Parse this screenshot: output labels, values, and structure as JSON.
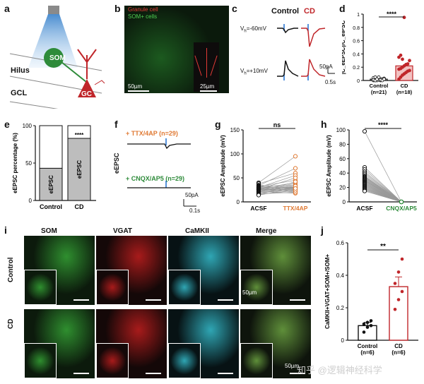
{
  "panels": {
    "a": {
      "letter": "a",
      "som_label": "SOM",
      "gc_label": "GC",
      "hilus_label": "Hilus",
      "gcl_label": "GCL"
    },
    "b": {
      "letter": "b",
      "legend_granule": "Granule cell",
      "legend_som": "SOM+ cells",
      "scale_main": "50µm",
      "scale_inset": "25µm"
    },
    "c": {
      "letter": "c",
      "header_control": "Control",
      "header_cd": "CD",
      "vh_neg": "V",
      "vh_neg_sub": "h",
      "vh_neg_val": "=-60mV",
      "vh_pos": "V",
      "vh_pos_sub": "h",
      "vh_pos_val": "=+10mV",
      "scale_amp": "50pA",
      "scale_time": "0.5s"
    },
    "d": {
      "letter": "d",
      "ylabel": "|C",
      "sig": "****"
    },
    "e": {
      "letter": "e",
      "sig": "****"
    },
    "f": {
      "letter": "f",
      "ylabel": "eEPSC",
      "cond1": "+ TTX/4AP (n=29)",
      "cond2": "+ CNQX/AP5 (n=29)",
      "scale_amp": "50pA",
      "scale_time": "0.1s"
    },
    "g": {
      "letter": "g",
      "sig": "ns"
    },
    "h": {
      "letter": "h",
      "sig": "****"
    },
    "i": {
      "letter": "i",
      "col_som": "SOM",
      "col_vgat": "VGAT",
      "col_camkii": "CaMKII",
      "col_merge": "Merge",
      "row_control": "Control",
      "row_cd": "CD",
      "scale": "50µm"
    },
    "j": {
      "letter": "j",
      "sig": "**"
    },
    "watermark": "知乎 @逻辑神经科学"
  },
  "colors": {
    "red": "#c0262a",
    "green": "#2e8b3a",
    "orange": "#e07a34",
    "blue": "#1f6fd1",
    "grey_bar": "#bdbdbd"
  },
  "chart_data": [
    {
      "id": "d",
      "type": "bar",
      "title": "",
      "ylabel": "|C_eEPSC|/C_eIPSC",
      "categories": [
        "Control\n(n=21)",
        "CD\n(n=18)"
      ],
      "values": [
        0.02,
        0.22
      ],
      "ylim": [
        0,
        1.0
      ],
      "yticks": [
        0.0,
        0.2,
        0.4,
        0.6,
        0.8,
        1.0
      ],
      "points": {
        "Control": [
          0.0,
          0.0,
          0.01,
          0.01,
          0.02,
          0.02,
          0.03,
          0.04,
          0.05,
          0.0,
          0.01,
          0.0,
          0.02,
          0.03,
          0.01,
          0.0,
          0.02,
          0.05,
          0.01,
          0.0,
          0.02
        ],
        "CD": [
          0.02,
          0.05,
          0.08,
          0.1,
          0.12,
          0.14,
          0.15,
          0.17,
          0.18,
          0.2,
          0.22,
          0.24,
          0.25,
          0.3,
          0.35,
          0.38,
          0.32,
          0.95
        ]
      }
    },
    {
      "id": "e",
      "type": "bar",
      "ylabel": "eEPSC percentage (%)",
      "categories": [
        "Control",
        "CD"
      ],
      "series": [
        {
          "name": "eEPSC",
          "values": [
            43,
            83
          ]
        }
      ],
      "ylim": [
        0,
        100
      ],
      "yticks": [
        0,
        50,
        100
      ]
    },
    {
      "id": "g",
      "type": "scatter",
      "ylabel": "eEPSC Amplitude (mV)",
      "categories": [
        "ACSF",
        "TTX/4AP"
      ],
      "ylim": [
        0,
        150
      ],
      "yticks": [
        0,
        50,
        100,
        150
      ],
      "pairs": [
        [
          40,
          95
        ],
        [
          38,
          60
        ],
        [
          35,
          30
        ],
        [
          34,
          70
        ],
        [
          33,
          25
        ],
        [
          32,
          45
        ],
        [
          31,
          35
        ],
        [
          30,
          30
        ],
        [
          30,
          55
        ],
        [
          29,
          20
        ],
        [
          28,
          40
        ],
        [
          28,
          32
        ],
        [
          27,
          28
        ],
        [
          26,
          50
        ],
        [
          26,
          22
        ],
        [
          25,
          30
        ],
        [
          25,
          38
        ],
        [
          24,
          26
        ],
        [
          23,
          30
        ],
        [
          22,
          18
        ],
        [
          22,
          35
        ],
        [
          21,
          28
        ],
        [
          20,
          42
        ],
        [
          19,
          25
        ],
        [
          18,
          30
        ],
        [
          17,
          20
        ],
        [
          16,
          33
        ],
        [
          15,
          24
        ],
        [
          14,
          28
        ]
      ]
    },
    {
      "id": "h",
      "type": "scatter",
      "ylabel": "eEPSC Amplitude (mV)",
      "categories": [
        "ACSF",
        "CNQX/AP5"
      ],
      "ylim": [
        0,
        100
      ],
      "yticks": [
        0,
        20,
        40,
        60,
        80,
        100
      ],
      "pairs": [
        [
          98,
          0
        ],
        [
          48,
          0
        ],
        [
          45,
          0
        ],
        [
          42,
          0
        ],
        [
          40,
          0
        ],
        [
          38,
          0
        ],
        [
          36,
          0
        ],
        [
          35,
          0
        ],
        [
          34,
          0
        ],
        [
          33,
          0
        ],
        [
          32,
          0
        ],
        [
          31,
          0
        ],
        [
          30,
          0
        ],
        [
          30,
          0
        ],
        [
          29,
          0
        ],
        [
          28,
          0
        ],
        [
          27,
          0
        ],
        [
          26,
          0
        ],
        [
          25,
          0
        ],
        [
          24,
          0
        ],
        [
          23,
          0
        ],
        [
          22,
          0
        ],
        [
          21,
          0
        ],
        [
          20,
          0
        ],
        [
          19,
          0
        ],
        [
          18,
          0
        ],
        [
          17,
          0
        ],
        [
          16,
          0
        ],
        [
          15,
          0
        ]
      ]
    },
    {
      "id": "j",
      "type": "bar",
      "ylabel": "CaMKII+VGAT+SOM+/SOM+",
      "categories": [
        "Control\n(n=6)",
        "CD\n(n=6)"
      ],
      "values": [
        0.09,
        0.33
      ],
      "errors": [
        0.02,
        0.06
      ],
      "ylim": [
        0.0,
        0.6
      ],
      "yticks": [
        0.0,
        0.2,
        0.4,
        0.6
      ],
      "points": {
        "Control": [
          0.05,
          0.08,
          0.09,
          0.1,
          0.11,
          0.12
        ],
        "CD": [
          0.19,
          0.25,
          0.3,
          0.35,
          0.42,
          0.5
        ]
      }
    }
  ]
}
